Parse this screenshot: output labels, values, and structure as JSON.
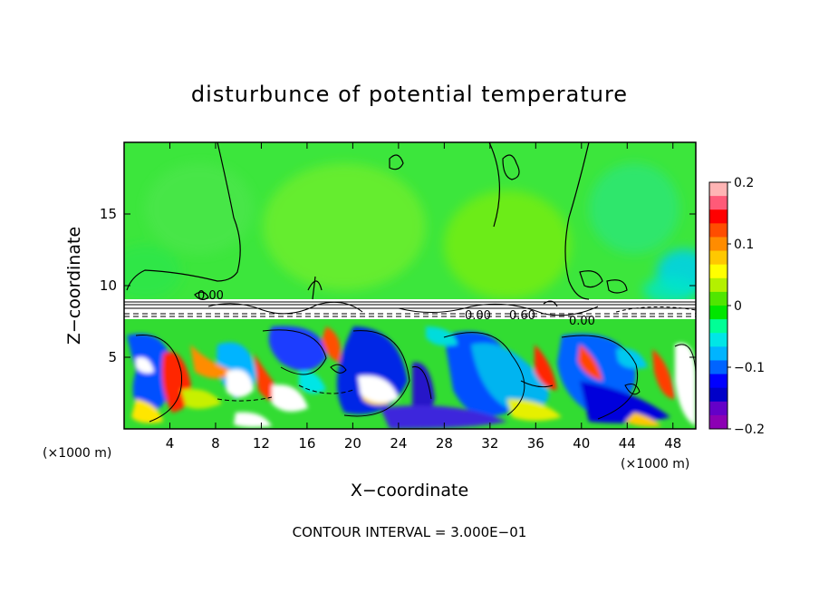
{
  "chart_data": {
    "type": "heatmap",
    "title": "disturbunce of potential temperature",
    "xlabel": "X−coordinate",
    "ylabel": "Z−coordinate",
    "x_unit_label_left": "(×1000 m)",
    "x_unit_label_right": "(×1000 m)",
    "xlim": [
      0,
      50
    ],
    "ylim": [
      0,
      20
    ],
    "x_ticks": [
      4,
      8,
      12,
      16,
      20,
      24,
      28,
      32,
      36,
      40,
      44,
      48
    ],
    "x_tick_labels": [
      "4",
      "8",
      "12",
      "16",
      "20",
      "24",
      "28",
      "32",
      "36",
      "40",
      "44",
      "48"
    ],
    "y_ticks": [
      5,
      10,
      15
    ],
    "y_tick_labels": [
      "5",
      "10",
      "15"
    ],
    "colorbar": {
      "min": -0.2,
      "max": 0.2,
      "tick_values": [
        0.2,
        0.1,
        0,
        -0.1,
        -0.2
      ],
      "tick_labels": [
        "0.2",
        "0.1",
        "0",
        "−0.1",
        "−0.2"
      ],
      "colors": [
        "#ffb4b4",
        "#ff5a78",
        "#ff0000",
        "#ff4d00",
        "#ff8c00",
        "#ffc800",
        "#ffff00",
        "#b4f000",
        "#50e600",
        "#00e600",
        "#00ff96",
        "#00e6e6",
        "#00b4ff",
        "#0064ff",
        "#0000ff",
        "#0000c8",
        "#6400c8",
        "#8c00b4"
      ]
    },
    "annotations": [
      "0.00",
      "0.00",
      "0.60",
      "0.00"
    ],
    "footer": "CONTOUR INTERVAL = 3.000E−01"
  }
}
